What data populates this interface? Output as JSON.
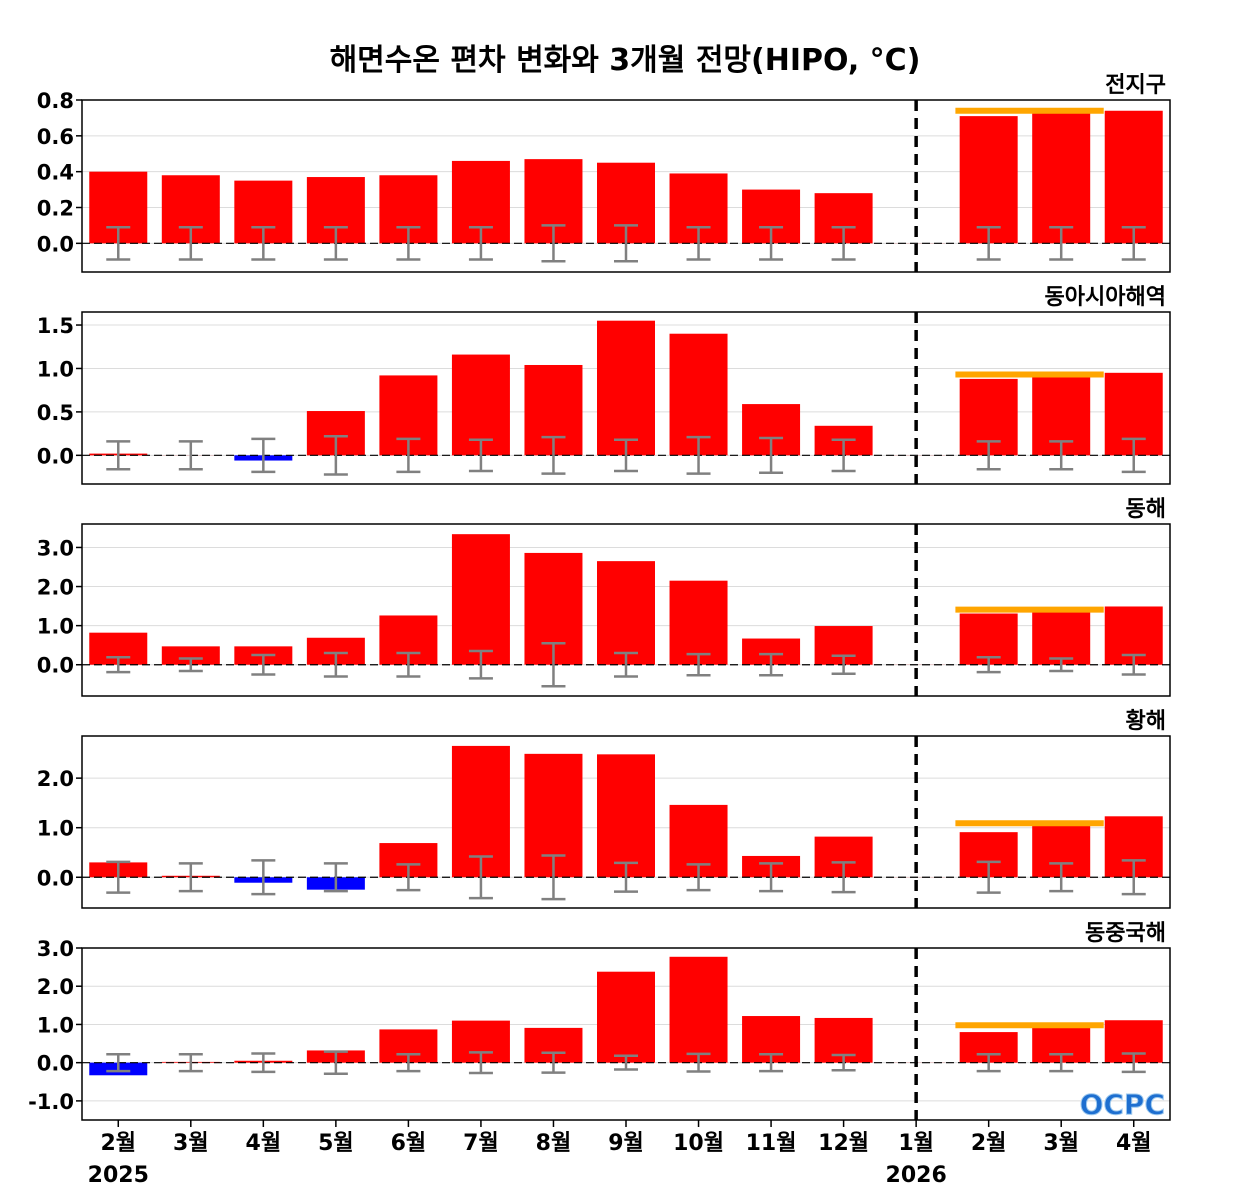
{
  "title": "해면수온 편차 변화와 3개월 전망(HIPO, °C)",
  "logo": "OCPC",
  "colors": {
    "positive": "#ff0000",
    "negative": "#0000ff",
    "forecast_line": "#ffa500",
    "error_bar": "#808080"
  },
  "x_labels": [
    "2월",
    "3월",
    "4월",
    "5월",
    "6월",
    "7월",
    "8월",
    "9월",
    "10월",
    "11월",
    "12월",
    "1월",
    "2월",
    "3월",
    "4월"
  ],
  "year_labels": [
    "2025",
    "2026"
  ],
  "chart_data": [
    {
      "type": "bar",
      "title": "전지구",
      "categories": [
        "2월",
        "3월",
        "4월",
        "5월",
        "6월",
        "7월",
        "8월",
        "9월",
        "10월",
        "11월",
        "12월",
        "1월",
        "2월",
        "3월",
        "4월"
      ],
      "values": [
        0.4,
        0.38,
        0.35,
        0.37,
        0.38,
        0.46,
        0.47,
        0.45,
        0.39,
        0.3,
        0.28,
        0,
        0.71,
        0.75,
        0.74
      ],
      "error_bars": [
        0.09,
        0.09,
        0.09,
        0.09,
        0.09,
        0.09,
        0.1,
        0.1,
        0.09,
        0.09,
        0.09,
        0,
        0.09,
        0.09,
        0.09
      ],
      "forecast_mean": 0.74,
      "ylim": [
        -0.16,
        0.8
      ],
      "yticks": [
        "0.0",
        "0.2",
        "0.4",
        "0.6",
        "0.8"
      ]
    },
    {
      "type": "bar",
      "title": "동아시아해역",
      "categories": [
        "2월",
        "3월",
        "4월",
        "5월",
        "6월",
        "7월",
        "8월",
        "9월",
        "10월",
        "11월",
        "12월",
        "1월",
        "2월",
        "3월",
        "4월"
      ],
      "values": [
        0.02,
        0.0,
        -0.06,
        0.51,
        0.92,
        1.16,
        1.04,
        1.55,
        1.4,
        0.59,
        0.34,
        0,
        0.88,
        0.93,
        0.95
      ],
      "error_bars": [
        0.16,
        0.16,
        0.19,
        0.22,
        0.19,
        0.18,
        0.21,
        0.18,
        0.21,
        0.2,
        0.18,
        0,
        0.16,
        0.16,
        0.19
      ],
      "forecast_mean": 0.93,
      "ylim": [
        -0.33,
        1.65
      ],
      "yticks": [
        "0.0",
        "0.5",
        "1.0",
        "1.5"
      ]
    },
    {
      "type": "bar",
      "title": "동해",
      "categories": [
        "2월",
        "3월",
        "4월",
        "5월",
        "6월",
        "7월",
        "8월",
        "9월",
        "10월",
        "11월",
        "12월",
        "1월",
        "2월",
        "3월",
        "4월"
      ],
      "values": [
        0.82,
        0.47,
        0.47,
        0.69,
        1.26,
        3.34,
        2.86,
        2.65,
        2.15,
        0.67,
        0.99,
        0,
        1.31,
        1.41,
        1.49
      ],
      "error_bars": [
        0.19,
        0.16,
        0.25,
        0.3,
        0.3,
        0.35,
        0.55,
        0.3,
        0.27,
        0.27,
        0.23,
        0,
        0.19,
        0.16,
        0.25
      ],
      "forecast_mean": 1.41,
      "ylim": [
        -0.8,
        3.6
      ],
      "yticks": [
        "0.0",
        "1.0",
        "2.0",
        "3.0"
      ]
    },
    {
      "type": "bar",
      "title": "황해",
      "categories": [
        "2월",
        "3월",
        "4월",
        "5월",
        "6월",
        "7월",
        "8월",
        "9월",
        "10월",
        "11월",
        "12월",
        "1월",
        "2월",
        "3월",
        "4월"
      ],
      "values": [
        0.3,
        0.03,
        -0.11,
        -0.25,
        0.69,
        2.65,
        2.49,
        2.48,
        1.46,
        0.43,
        0.82,
        0,
        0.91,
        1.09,
        1.23
      ],
      "error_bars": [
        0.31,
        0.28,
        0.34,
        0.28,
        0.26,
        0.42,
        0.44,
        0.29,
        0.26,
        0.28,
        0.3,
        0,
        0.31,
        0.28,
        0.34
      ],
      "forecast_mean": 1.09,
      "ylim": [
        -0.62,
        2.85
      ],
      "yticks": [
        "0.0",
        "1.0",
        "2.0"
      ]
    },
    {
      "type": "bar",
      "title": "동중국해",
      "categories": [
        "2월",
        "3월",
        "4월",
        "5월",
        "6월",
        "7월",
        "8월",
        "9월",
        "10월",
        "11월",
        "12월",
        "1월",
        "2월",
        "3월",
        "4월"
      ],
      "values": [
        -0.33,
        0.02,
        0.05,
        0.32,
        0.87,
        1.1,
        0.91,
        2.38,
        2.77,
        1.22,
        1.17,
        0,
        0.8,
        0.98,
        1.11
      ],
      "error_bars": [
        0.22,
        0.22,
        0.24,
        0.29,
        0.22,
        0.27,
        0.26,
        0.18,
        0.23,
        0.22,
        0.2,
        0,
        0.22,
        0.22,
        0.24
      ],
      "forecast_mean": 0.98,
      "ylim": [
        -1.5,
        3.0
      ],
      "yticks": [
        "-1.0",
        "0.0",
        "1.0",
        "2.0",
        "3.0"
      ]
    }
  ]
}
